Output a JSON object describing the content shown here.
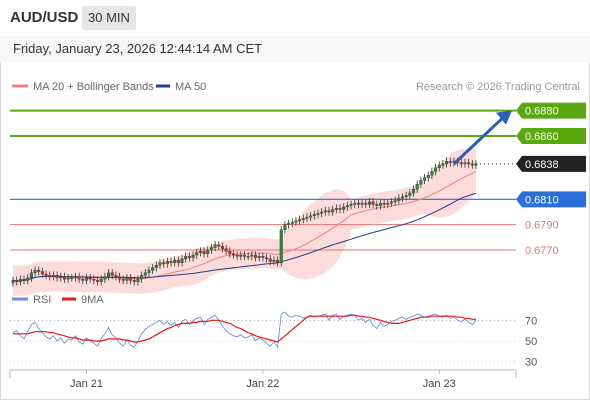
{
  "header": {
    "pair": "AUD/USD",
    "timeframe": "30 MIN",
    "datetime": "Friday, January 23, 2026 12:44:14 AM CET"
  },
  "credit": "Research © 2026 Trading Central",
  "colors": {
    "bull": "#2e8b2e",
    "bear": "#d92b2b",
    "ma20": "#f08080",
    "bollinger_band": "#fbd5d5",
    "ma50": "#1f3d8a",
    "resistance": "#5aa80f",
    "pivot": "#2a6fd6",
    "support": "#e57373",
    "last_price": "#222222",
    "rsi": "#6f8fde",
    "rsi_ma": "#e01818",
    "arrow": "#2a5fb0"
  },
  "chart_data": [
    {
      "type": "candlestick",
      "legend": [
        {
          "name": "MA 20 + Bollinger Bands",
          "color": "#f08080"
        },
        {
          "name": "MA 50",
          "color": "#1f3d8a"
        }
      ],
      "ylim": [
        0.674,
        0.689
      ],
      "x_ticks": [
        {
          "label": "Jan 21",
          "index": 20
        },
        {
          "label": "Jan 22",
          "index": 68
        },
        {
          "label": "Jan 23",
          "index": 116
        }
      ],
      "levels": [
        {
          "label": "0.6880",
          "value": 0.688,
          "kind": "resistance"
        },
        {
          "label": "0.6860",
          "value": 0.686,
          "kind": "resistance"
        },
        {
          "label": "0.6838",
          "value": 0.6838,
          "kind": "last"
        },
        {
          "label": "0.6810",
          "value": 0.681,
          "kind": "pivot"
        },
        {
          "label": "0.6790",
          "value": 0.679,
          "kind": "support"
        },
        {
          "label": "0.6770",
          "value": 0.677,
          "kind": "support"
        }
      ],
      "arrow": {
        "from_index": 120,
        "from_value": 0.6838,
        "to_value": 0.688
      },
      "close": [
        0.6746,
        0.6745,
        0.6747,
        0.6746,
        0.6748,
        0.6752,
        0.6754,
        0.6753,
        0.6751,
        0.675,
        0.6749,
        0.675,
        0.6748,
        0.6749,
        0.6747,
        0.6748,
        0.6748,
        0.6749,
        0.6747,
        0.6746,
        0.6748,
        0.6747,
        0.6746,
        0.6745,
        0.6747,
        0.6749,
        0.6752,
        0.675,
        0.6749,
        0.6747,
        0.6746,
        0.6748,
        0.6746,
        0.6745,
        0.6747,
        0.675,
        0.6752,
        0.6754,
        0.6756,
        0.6758,
        0.676,
        0.6759,
        0.6761,
        0.676,
        0.6762,
        0.676,
        0.6763,
        0.6765,
        0.6764,
        0.6766,
        0.6768,
        0.6769,
        0.6767,
        0.677,
        0.6772,
        0.6774,
        0.6773,
        0.6771,
        0.6769,
        0.6767,
        0.6766,
        0.6765,
        0.6766,
        0.6765,
        0.6765,
        0.6766,
        0.6764,
        0.6765,
        0.6764,
        0.6763,
        0.6761,
        0.6762,
        0.676,
        0.6786,
        0.679,
        0.6791,
        0.6792,
        0.6793,
        0.6794,
        0.6795,
        0.6796,
        0.6797,
        0.6798,
        0.6799,
        0.68,
        0.6801,
        0.68,
        0.6802,
        0.6803,
        0.6802,
        0.6804,
        0.6805,
        0.6806,
        0.6807,
        0.6806,
        0.6807,
        0.6806,
        0.6808,
        0.6806,
        0.6805,
        0.6807,
        0.6806,
        0.6807,
        0.6808,
        0.6809,
        0.6811,
        0.6812,
        0.6813,
        0.6815,
        0.6818,
        0.6822,
        0.6825,
        0.6827,
        0.6829,
        0.6832,
        0.6835,
        0.6837,
        0.6838,
        0.684,
        0.6839,
        0.684,
        0.6839,
        0.6838,
        0.6839,
        0.6838,
        0.6837,
        0.6838
      ]
    },
    {
      "type": "line",
      "panel": "oscillator",
      "legend": [
        {
          "name": "RSI",
          "color": "#6f8fde"
        },
        {
          "name": "9MA",
          "color": "#e01818"
        }
      ],
      "ylim": [
        20,
        80
      ],
      "y_ticks": [
        70,
        50,
        30
      ],
      "series": [
        {
          "name": "RSI",
          "values": [
            58,
            60,
            55,
            52,
            59,
            66,
            68,
            62,
            58,
            54,
            52,
            55,
            50,
            53,
            48,
            52,
            51,
            55,
            49,
            47,
            53,
            50,
            48,
            45,
            52,
            57,
            63,
            56,
            53,
            48,
            45,
            51,
            46,
            44,
            50,
            57,
            61,
            64,
            66,
            68,
            70,
            66,
            69,
            65,
            68,
            63,
            69,
            71,
            66,
            70,
            72,
            73,
            66,
            71,
            73,
            75,
            70,
            64,
            60,
            57,
            55,
            54,
            56,
            53,
            54,
            56,
            50,
            53,
            51,
            48,
            45,
            49,
            44,
            76,
            78,
            74,
            73,
            75,
            74,
            72,
            73,
            75,
            73,
            74,
            75,
            76,
            70,
            75,
            76,
            71,
            74,
            75,
            76,
            75,
            70,
            72,
            68,
            71,
            65,
            62,
            68,
            64,
            66,
            69,
            70,
            72,
            73,
            71,
            73,
            74,
            76,
            75,
            73,
            74,
            75,
            76,
            74,
            73,
            75,
            72,
            73,
            70,
            69,
            71,
            68,
            66,
            70
          ]
        },
        {
          "name": "9MA",
          "values": [
            57,
            57,
            57,
            57,
            57,
            58,
            59,
            59,
            59,
            59,
            58,
            58,
            57,
            56,
            55,
            54,
            53,
            53,
            52,
            51,
            51,
            51,
            50,
            50,
            50,
            51,
            52,
            52,
            52,
            52,
            51,
            51,
            50,
            49,
            49,
            50,
            51,
            52,
            54,
            56,
            58,
            60,
            62,
            63,
            65,
            66,
            67,
            67,
            67,
            68,
            68,
            69,
            69,
            69,
            70,
            70,
            70,
            69,
            68,
            67,
            65,
            63,
            62,
            60,
            58,
            57,
            55,
            54,
            53,
            52,
            51,
            50,
            49,
            52,
            55,
            58,
            61,
            64,
            67,
            70,
            73,
            74,
            74,
            74,
            74,
            74,
            74,
            74,
            74,
            74,
            74,
            74,
            75,
            75,
            74,
            74,
            73,
            73,
            72,
            71,
            70,
            69,
            68,
            67,
            67,
            67,
            68,
            69,
            70,
            71,
            72,
            73,
            73,
            73,
            74,
            74,
            74,
            74,
            74,
            74,
            74,
            73,
            73,
            72,
            72,
            71,
            71
          ]
        }
      ]
    }
  ]
}
